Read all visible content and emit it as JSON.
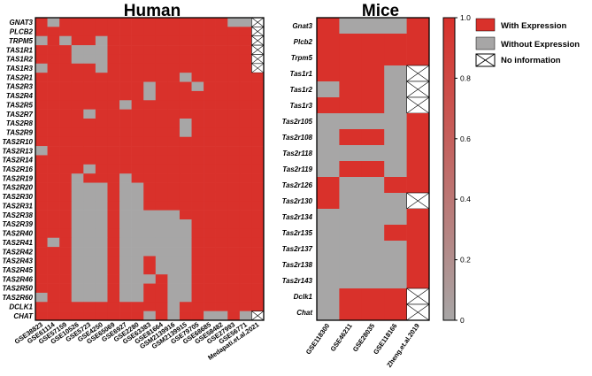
{
  "colors": {
    "with": "#d9312b",
    "without": "#a7a6a6",
    "grid": "#ffffff",
    "frame": "#000000"
  },
  "legend": {
    "with": "With Expression",
    "without": "Without Expression",
    "noinfo": "No information"
  },
  "colorbar": {
    "ticks": [
      "1.0",
      "0.8",
      "0.6",
      "0.4",
      "0.2",
      "0"
    ],
    "tick_values": [
      1.0,
      0.8,
      0.6,
      0.4,
      0.2,
      0.0
    ],
    "from_color": "#a7a6a6",
    "to_color": "#d9312b"
  },
  "chart_data": [
    {
      "type": "heatmap",
      "title": "Human",
      "value_legend": {
        "1": "With Expression",
        "0": "Without Expression",
        "-1": "No information"
      },
      "rows": [
        "GNAT3",
        "PLCB2",
        "TRPM5",
        "TAS1R1",
        "TAS1R2",
        "TAS1R3",
        "TAS2R1",
        "TAS2R3",
        "TAS2R4",
        "TAS2R5",
        "TAS2R7",
        "TAS2R8",
        "TAS2R9",
        "TAS2R10",
        "TAS2R13",
        "TAS2R14",
        "TAS2R16",
        "TAS2R19",
        "TAS2R20",
        "TAS2R30",
        "TAS2R31",
        "TAS2R38",
        "TAS2R39",
        "TAS2R40",
        "TAS2R41",
        "TAS2R42",
        "TAS2R43",
        "TAS2R45",
        "TAS2R46",
        "TAS2R50",
        "TAS2R60",
        "DCLK1",
        "CHAT"
      ],
      "columns": [
        "GSE38823",
        "GSE61114",
        "GSE57159",
        "GSE10526",
        "GSE5723",
        "GSE4250",
        "GSE65069",
        "GSE6927",
        "GSE2280",
        "GSE63383",
        "GSE81664",
        "GSM2139916",
        "GSM2139915",
        "GSE79705",
        "GSE68685",
        "GSE58482",
        "GSE27993",
        "GSE56771",
        "Medapati.et.al.2021"
      ],
      "values": [
        [
          1,
          0,
          1,
          1,
          1,
          1,
          1,
          1,
          1,
          1,
          1,
          1,
          1,
          1,
          1,
          1,
          0,
          0,
          -1
        ],
        [
          1,
          1,
          1,
          1,
          1,
          1,
          1,
          1,
          1,
          1,
          1,
          1,
          1,
          1,
          1,
          1,
          1,
          1,
          -1
        ],
        [
          0,
          1,
          0,
          1,
          1,
          0,
          1,
          1,
          1,
          1,
          1,
          1,
          1,
          1,
          1,
          1,
          1,
          1,
          -1
        ],
        [
          1,
          1,
          1,
          0,
          0,
          0,
          1,
          1,
          1,
          1,
          1,
          1,
          1,
          1,
          1,
          1,
          1,
          1,
          -1
        ],
        [
          1,
          1,
          1,
          0,
          0,
          0,
          1,
          1,
          1,
          1,
          1,
          1,
          1,
          1,
          1,
          1,
          1,
          1,
          -1
        ],
        [
          0,
          1,
          1,
          1,
          1,
          0,
          1,
          1,
          1,
          1,
          1,
          1,
          1,
          1,
          1,
          1,
          1,
          1,
          -1
        ],
        [
          1,
          1,
          1,
          1,
          1,
          1,
          1,
          1,
          1,
          1,
          1,
          1,
          0,
          1,
          1,
          1,
          1,
          1,
          1
        ],
        [
          1,
          1,
          1,
          1,
          1,
          1,
          1,
          1,
          1,
          0,
          1,
          1,
          1,
          0,
          1,
          1,
          1,
          1,
          1
        ],
        [
          1,
          1,
          1,
          1,
          1,
          1,
          1,
          1,
          1,
          0,
          1,
          1,
          1,
          1,
          1,
          1,
          1,
          1,
          1
        ],
        [
          1,
          1,
          1,
          1,
          1,
          1,
          1,
          0,
          1,
          1,
          1,
          1,
          1,
          1,
          1,
          1,
          1,
          1,
          1
        ],
        [
          1,
          1,
          1,
          1,
          0,
          1,
          1,
          1,
          1,
          1,
          1,
          1,
          1,
          1,
          1,
          1,
          1,
          1,
          1
        ],
        [
          1,
          1,
          1,
          1,
          1,
          1,
          1,
          1,
          1,
          1,
          1,
          1,
          0,
          1,
          1,
          1,
          1,
          1,
          1
        ],
        [
          1,
          1,
          1,
          1,
          1,
          1,
          1,
          1,
          1,
          1,
          1,
          1,
          0,
          1,
          1,
          1,
          1,
          1,
          1
        ],
        [
          1,
          1,
          1,
          1,
          1,
          1,
          1,
          1,
          1,
          1,
          1,
          1,
          1,
          1,
          1,
          1,
          1,
          1,
          1
        ],
        [
          0,
          1,
          1,
          1,
          1,
          1,
          1,
          1,
          1,
          1,
          1,
          1,
          1,
          1,
          1,
          1,
          1,
          1,
          1
        ],
        [
          1,
          1,
          1,
          1,
          1,
          1,
          1,
          1,
          1,
          1,
          1,
          1,
          1,
          1,
          1,
          1,
          1,
          1,
          1
        ],
        [
          1,
          1,
          1,
          1,
          0,
          1,
          1,
          1,
          1,
          1,
          1,
          1,
          1,
          1,
          1,
          1,
          1,
          1,
          1
        ],
        [
          1,
          1,
          1,
          0,
          1,
          1,
          1,
          0,
          1,
          1,
          1,
          1,
          1,
          1,
          1,
          1,
          1,
          1,
          1
        ],
        [
          1,
          1,
          1,
          0,
          0,
          0,
          1,
          0,
          0,
          1,
          1,
          1,
          1,
          1,
          1,
          1,
          1,
          1,
          1
        ],
        [
          1,
          1,
          1,
          0,
          0,
          0,
          1,
          0,
          0,
          1,
          1,
          1,
          1,
          1,
          1,
          1,
          1,
          1,
          1
        ],
        [
          1,
          1,
          1,
          0,
          0,
          0,
          1,
          0,
          0,
          1,
          1,
          1,
          1,
          1,
          1,
          1,
          1,
          1,
          1
        ],
        [
          1,
          1,
          1,
          0,
          0,
          0,
          1,
          0,
          0,
          0,
          0,
          0,
          1,
          1,
          1,
          1,
          1,
          1,
          1
        ],
        [
          1,
          1,
          1,
          0,
          0,
          0,
          1,
          0,
          0,
          0,
          0,
          0,
          0,
          1,
          1,
          1,
          1,
          1,
          1
        ],
        [
          1,
          1,
          1,
          0,
          0,
          0,
          1,
          0,
          0,
          0,
          0,
          0,
          0,
          1,
          1,
          1,
          1,
          1,
          1
        ],
        [
          1,
          0,
          1,
          0,
          0,
          0,
          1,
          0,
          0,
          0,
          0,
          0,
          0,
          1,
          1,
          1,
          1,
          1,
          1
        ],
        [
          1,
          1,
          1,
          0,
          0,
          0,
          1,
          0,
          0,
          0,
          0,
          0,
          0,
          1,
          1,
          1,
          1,
          1,
          1
        ],
        [
          1,
          1,
          1,
          0,
          0,
          0,
          1,
          0,
          0,
          1,
          0,
          0,
          0,
          1,
          1,
          1,
          1,
          1,
          1
        ],
        [
          1,
          1,
          1,
          0,
          0,
          0,
          1,
          0,
          0,
          1,
          0,
          0,
          0,
          1,
          1,
          1,
          1,
          1,
          1
        ],
        [
          1,
          1,
          1,
          0,
          0,
          0,
          1,
          0,
          0,
          0,
          1,
          0,
          0,
          1,
          1,
          1,
          1,
          1,
          1
        ],
        [
          1,
          1,
          1,
          0,
          0,
          0,
          1,
          0,
          0,
          1,
          1,
          0,
          0,
          1,
          1,
          1,
          1,
          1,
          1
        ],
        [
          0,
          1,
          1,
          0,
          0,
          0,
          1,
          0,
          0,
          1,
          1,
          0,
          0,
          1,
          1,
          1,
          1,
          1,
          1
        ],
        [
          1,
          1,
          1,
          1,
          1,
          1,
          1,
          1,
          1,
          1,
          1,
          0,
          1,
          1,
          1,
          1,
          1,
          1,
          1
        ],
        [
          1,
          1,
          1,
          1,
          1,
          1,
          1,
          1,
          1,
          0,
          1,
          0,
          1,
          1,
          0,
          0,
          1,
          0,
          -1
        ]
      ]
    },
    {
      "type": "heatmap",
      "title": "Mice",
      "value_legend": {
        "1": "With Expression",
        "0": "Without Expression",
        "-1": "No information"
      },
      "rows": [
        "Gnat3",
        "Plcb2",
        "Trpm5",
        "Tas1r1",
        "Tas1r2",
        "Tas1r3",
        "Tas2r105",
        "Tas2r108",
        "Tas2r118",
        "Tas2r119",
        "Tas2r126",
        "Tas2r130",
        "Tas2r134",
        "Tas2r135",
        "Tas2r137",
        "Tas2r138",
        "Tas2r143",
        "Dclk1",
        "Chat"
      ],
      "columns": [
        "GSE118300",
        "GSE46211",
        "GSE28035",
        "GSE118166",
        "Zheng.et.al.2019"
      ],
      "values": [
        [
          1,
          0,
          0,
          0,
          1
        ],
        [
          1,
          1,
          1,
          1,
          1
        ],
        [
          1,
          1,
          1,
          1,
          1
        ],
        [
          1,
          1,
          1,
          0,
          -1
        ],
        [
          0,
          1,
          1,
          0,
          -1
        ],
        [
          1,
          1,
          1,
          0,
          -1
        ],
        [
          0,
          0,
          0,
          0,
          1
        ],
        [
          0,
          1,
          1,
          0,
          1
        ],
        [
          0,
          0,
          0,
          0,
          1
        ],
        [
          0,
          1,
          1,
          0,
          1
        ],
        [
          1,
          0,
          0,
          1,
          1
        ],
        [
          1,
          0,
          0,
          0,
          -1
        ],
        [
          0,
          0,
          0,
          0,
          1
        ],
        [
          0,
          0,
          0,
          1,
          1
        ],
        [
          0,
          0,
          0,
          0,
          1
        ],
        [
          0,
          0,
          0,
          0,
          1
        ],
        [
          0,
          0,
          0,
          0,
          1
        ],
        [
          0,
          1,
          1,
          1,
          -1
        ],
        [
          0,
          1,
          1,
          1,
          -1
        ]
      ]
    }
  ]
}
